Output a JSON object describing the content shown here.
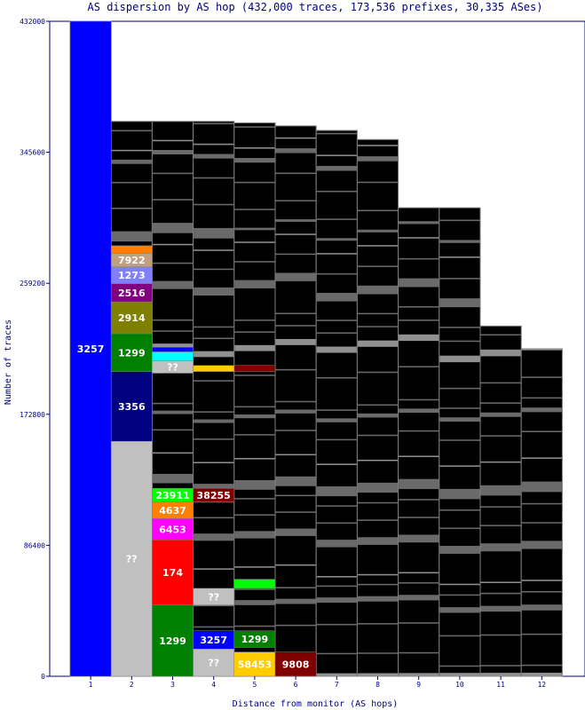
{
  "chart_data": {
    "type": "bar",
    "title": "AS dispersion by AS hop (432,000 traces, 173,536 prefixes, 30,335 ASes)",
    "xlabel": "Distance from monitor (AS hops)",
    "ylabel": "Number of traces",
    "ylim": [
      0,
      432000
    ],
    "yticks": [
      "0",
      "86400",
      "172800",
      "259200",
      "345600",
      "432000"
    ],
    "categories": [
      "1",
      "2",
      "3",
      "4",
      "5",
      "6",
      "7",
      "8",
      "9",
      "10",
      "11",
      "12"
    ],
    "totals": [
      432000,
      366000,
      366000,
      366000,
      365000,
      363000,
      360000,
      354000,
      309000,
      309000,
      231000,
      216000
    ],
    "segments": [
      {
        "hop": "1",
        "label": "3257",
        "color": "#0000ff",
        "y0": 0,
        "y1": 432000
      },
      {
        "hop": "2",
        "label": "??",
        "color": "#c0c0c0",
        "y0": 0,
        "y1": 155000
      },
      {
        "hop": "2",
        "label": "3356",
        "color": "#000080",
        "y0": 155000,
        "y1": 201000
      },
      {
        "hop": "2",
        "label": "1299",
        "color": "#008000",
        "y0": 201000,
        "y1": 226000
      },
      {
        "hop": "2",
        "label": "2914",
        "color": "#808000",
        "y0": 226000,
        "y1": 247000
      },
      {
        "hop": "2",
        "label": "2516",
        "color": "#800080",
        "y0": 247000,
        "y1": 259000
      },
      {
        "hop": "2",
        "label": "1273",
        "color": "#8080ff",
        "y0": 259000,
        "y1": 270000
      },
      {
        "hop": "2",
        "label": "7922",
        "color": "#c0a080",
        "y0": 270000,
        "y1": 279000
      },
      {
        "hop": "2",
        "label": "",
        "color": "#ff8000",
        "y0": 279000,
        "y1": 284000
      },
      {
        "hop": "3",
        "label": "1299",
        "color": "#008000",
        "y0": 0,
        "y1": 47000
      },
      {
        "hop": "3",
        "label": "174",
        "color": "#ff0000",
        "y0": 47000,
        "y1": 90000
      },
      {
        "hop": "3",
        "label": "6453",
        "color": "#ff00ff",
        "y0": 90000,
        "y1": 104000
      },
      {
        "hop": "3",
        "label": "4637",
        "color": "#ff8000",
        "y0": 104000,
        "y1": 115000
      },
      {
        "hop": "3",
        "label": "23911",
        "color": "#00ff00",
        "y0": 115000,
        "y1": 124000
      },
      {
        "hop": "3",
        "label": "??",
        "color": "#c0c0c0",
        "y0": 200000,
        "y1": 208000
      },
      {
        "hop": "3",
        "label": "",
        "color": "#00ffff",
        "y0": 208000,
        "y1": 214000
      },
      {
        "hop": "3",
        "label": "",
        "color": "#0000ff",
        "y0": 214000,
        "y1": 217000
      },
      {
        "hop": "4",
        "label": "??",
        "color": "#c0c0c0",
        "y0": 0,
        "y1": 18000
      },
      {
        "hop": "4",
        "label": "3257",
        "color": "#0000ff",
        "y0": 18000,
        "y1": 30000
      },
      {
        "hop": "4",
        "label": "??",
        "color": "#c0c0c0",
        "y0": 47000,
        "y1": 58000
      },
      {
        "hop": "4",
        "label": "38255",
        "color": "#800000",
        "y0": 115000,
        "y1": 124000
      },
      {
        "hop": "4",
        "label": "",
        "color": "#ffcc00",
        "y0": 201000,
        "y1": 205000
      },
      {
        "hop": "5",
        "label": "58453",
        "color": "#ffcc00",
        "y0": 0,
        "y1": 16000
      },
      {
        "hop": "5",
        "label": "1299",
        "color": "#008000",
        "y0": 19000,
        "y1": 30000
      },
      {
        "hop": "5",
        "label": "",
        "color": "#00ff00",
        "y0": 58000,
        "y1": 64000
      },
      {
        "hop": "5",
        "label": "",
        "color": "#800000",
        "y0": 201000,
        "y1": 205000
      },
      {
        "hop": "6",
        "label": "9808",
        "color": "#800000",
        "y0": 0,
        "y1": 16000
      }
    ]
  }
}
